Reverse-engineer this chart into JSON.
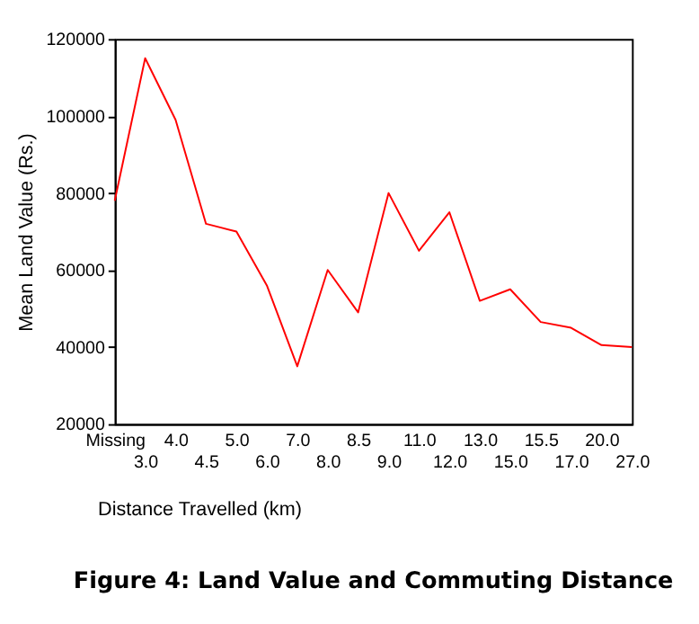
{
  "chart_data": {
    "type": "line",
    "title": "Figure 4: Land Value and Commuting Distance",
    "xlabel": "Distance Travelled (km)",
    "ylabel": "Mean Land Value (Rs.)",
    "categories": [
      "Missing",
      "3.0",
      "4.0",
      "4.5",
      "5.0",
      "6.0",
      "7.0",
      "8.0",
      "8.5",
      "9.0",
      "11.0",
      "12.0",
      "13.0",
      "15.0",
      "15.5",
      "17.0",
      "20.0",
      "27.0"
    ],
    "series": [
      {
        "color": "#ff0000",
        "values": [
          78000,
          115000,
          99000,
          72000,
          70000,
          56000,
          35000,
          60000,
          49000,
          80000,
          65000,
          75000,
          52000,
          55000,
          46500,
          45000,
          40500,
          40000
        ]
      }
    ],
    "ylim": [
      20000,
      120000
    ],
    "yticks": [
      20000,
      40000,
      60000,
      80000,
      100000,
      120000
    ],
    "grid": false,
    "marker": "none",
    "line_style": "solid"
  }
}
